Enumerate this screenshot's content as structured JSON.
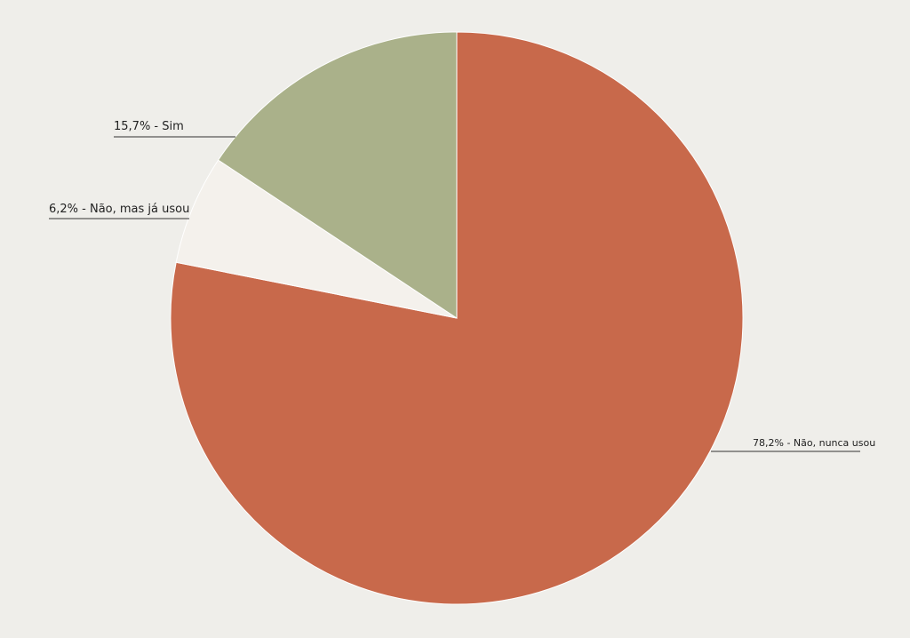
{
  "chart_data": {
    "type": "pie",
    "values": [
      78.2,
      6.2,
      15.7
    ],
    "value_labels": [
      "78,2% - Não, nunca usou",
      "6,2% - Não, mas já usou",
      "15,7% - Sim"
    ],
    "colors": [
      "#c8694b",
      "#f4f1ec",
      "#aab18a"
    ]
  }
}
